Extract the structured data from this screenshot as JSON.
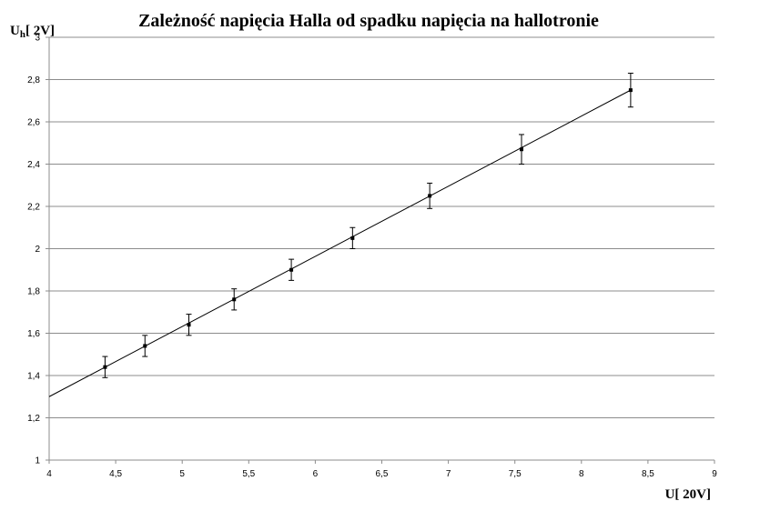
{
  "chart_data": {
    "type": "scatter",
    "title": "Zależność napięcia Halla od spadku napięcia na hallotronie",
    "xlabel": "U[ 20V]",
    "ylabel_main": "U",
    "ylabel_sub": "h",
    "ylabel_rest": "[ 2V]",
    "xlim": [
      4,
      9
    ],
    "ylim": [
      1,
      3
    ],
    "x_ticks": [
      4,
      4.5,
      5,
      5.5,
      6,
      6.5,
      7,
      7.5,
      8,
      8.5,
      9
    ],
    "x_tick_labels": [
      "4",
      "4,5",
      "5",
      "5,5",
      "6",
      "6,5",
      "7",
      "7,5",
      "8",
      "8,5",
      "9"
    ],
    "y_ticks": [
      1,
      1.2,
      1.4,
      1.6,
      1.8,
      2,
      2.2,
      2.4,
      2.6,
      2.8,
      3
    ],
    "y_tick_labels": [
      "1",
      "1,2",
      "1,4",
      "1,6",
      "1,8",
      "2",
      "2,2",
      "2,4",
      "2,6",
      "2,8",
      "3"
    ],
    "grid": true,
    "series": [
      {
        "x": [
          4.42,
          4.72,
          5.05,
          5.39,
          5.82,
          6.28,
          6.86,
          7.55,
          8.37
        ],
        "y": [
          1.44,
          1.54,
          1.64,
          1.76,
          1.9,
          2.05,
          2.25,
          2.47,
          2.75
        ],
        "y_error": [
          0.05,
          0.05,
          0.05,
          0.05,
          0.05,
          0.05,
          0.06,
          0.07,
          0.08
        ]
      }
    ],
    "trendline": {
      "type": "linear",
      "x": [
        4,
        8.37
      ],
      "y": [
        1.3,
        2.75
      ]
    }
  }
}
